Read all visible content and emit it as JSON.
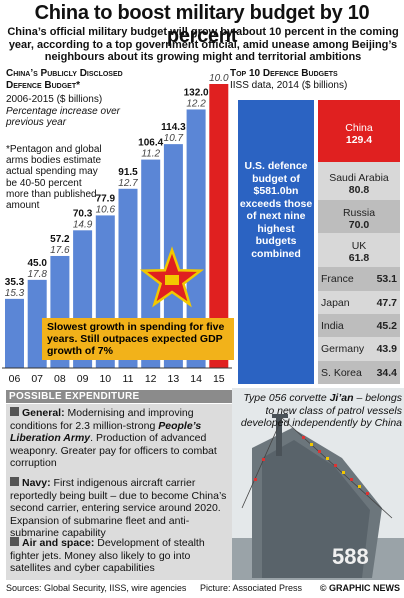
{
  "headline": "China to boost military budget by 10 percent",
  "intro": "China’s official military budget will grow by about 10 percent in the coming year, according to a top government official, amid unease among Beijing’s neighbours about its growing might and territorial ambitions",
  "left_panel": {
    "title_line1": "China’s Publicly Disclosed",
    "title_line2": "Defence Budget*",
    "period": "2006-2015 ($ billions)",
    "increase_note": "Percentage increase over previous year",
    "footnote": "*Pentagon and global arms bodies estimate actual spending may be 40-50 percent more than published amount",
    "slow_growth_note": "Slowest growth in spending for five years. Still outpaces expected GDP growth of 7%"
  },
  "colors": {
    "bar": "#5b86d6",
    "bar_highlight": "#e02020",
    "us": "#2b63c2",
    "china": "#e02020",
    "row_light": "#d8d8d8",
    "row_dark": "#bdbdbd",
    "accent_box": "#f2b21a"
  },
  "chart_data": {
    "type": "bar",
    "categories": [
      "06",
      "07",
      "08",
      "09",
      "10",
      "11",
      "12",
      "13",
      "14",
      "15"
    ],
    "values": [
      35.3,
      45.0,
      57.2,
      70.3,
      77.9,
      91.5,
      106.4,
      114.3,
      132.0,
      145.0
    ],
    "value_labels": [
      "35.3",
      "45.0",
      "57.2",
      "70.3",
      "77.9",
      "91.5",
      "106.4",
      "114.3",
      "132.0",
      "145.0"
    ],
    "pct_increase": [
      "15.3",
      "17.8",
      "17.6",
      "14.9",
      "10.6",
      "12.7",
      "11.2",
      "10.7",
      "12.2",
      "10.0"
    ],
    "highlight_index": 9,
    "ylim": [
      0,
      145
    ]
  },
  "right_panel": {
    "title": "Top 10 Defence Budgets",
    "subtitle": "IISS data, 2014 ($ billions)",
    "us_text": "U.S. defence budget of $581.0bn exceeds those of next nine highest budgets combined",
    "ranking": [
      {
        "name": "China",
        "value": "129.4"
      },
      {
        "name": "Saudi Arabia",
        "value": "80.8"
      },
      {
        "name": "Russia",
        "value": "70.0"
      },
      {
        "name": "UK",
        "value": "61.8"
      },
      {
        "name": "France",
        "value": "53.1"
      },
      {
        "name": "Japan",
        "value": "47.7"
      },
      {
        "name": "India",
        "value": "45.2"
      },
      {
        "name": "Germany",
        "value": "43.9"
      },
      {
        "name": "S. Korea",
        "value": "34.4"
      }
    ]
  },
  "expenditure": {
    "header": "Possible Expenditure",
    "items": [
      {
        "title": "General:",
        "text_before": "Modernising and improving conditions for 2.3 million-strong",
        "em": "People’s Liberation Army",
        "text_after": ". Production of advanced weaponry. Greater pay for officers to combat corruption"
      },
      {
        "title": "Navy:",
        "text_before": "First indigenous aircraft carrier reportedly being built – due to become China’s second carrier, entering service around 2020. Expansion of submarine fleet and anti-submarine capability",
        "em": "",
        "text_after": ""
      },
      {
        "title": "Air and space:",
        "text_before": "Development of stealth fighter jets. Money also likely to go into satellites and cyber capabilities",
        "em": "",
        "text_after": ""
      }
    ]
  },
  "photo": {
    "caption_prefix": "Type 056 corvette ",
    "caption_ship": "Ji’an",
    "caption_suffix": " – belongs to new class of patrol vessels developed independently by China"
  },
  "footer": {
    "sources": "Sources: Global Security, IISS, wire agencies",
    "credit": "Picture: Associated Press",
    "logo": "© GRAPHIC NEWS"
  }
}
